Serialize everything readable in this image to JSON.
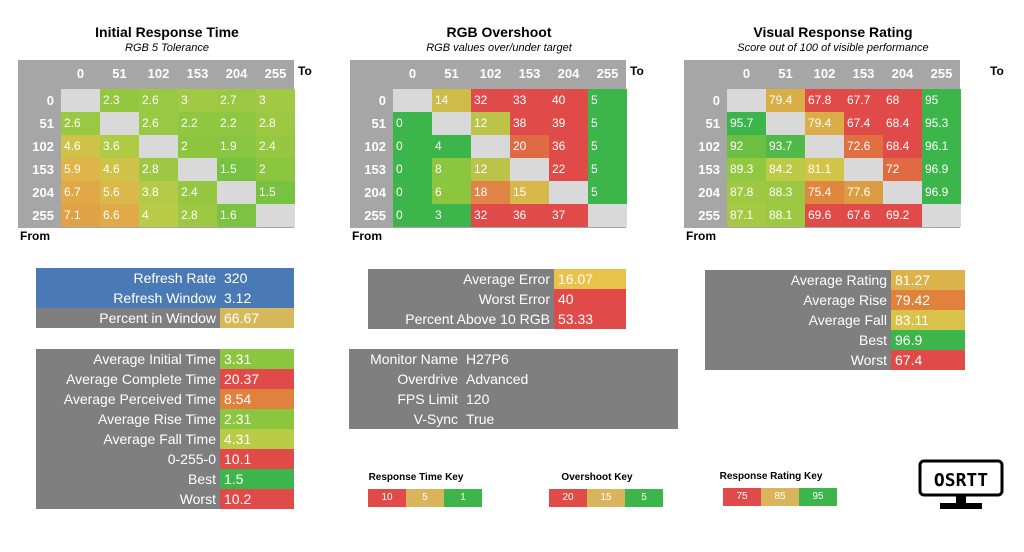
{
  "labels": {
    "to": "To",
    "from": "From"
  },
  "axis": [
    "0",
    "51",
    "102",
    "153",
    "204",
    "255"
  ],
  "heatmaps": [
    {
      "title": "Initial Response Time",
      "subtitle": "RGB 5 Tolerance",
      "kind": "time",
      "rows": [
        [
          null,
          "2.3",
          "2.6",
          "3",
          "2.7",
          "3"
        ],
        [
          "2.6",
          null,
          "2.6",
          "2.2",
          "2.2",
          "2.8"
        ],
        [
          "4.6",
          "3.6",
          null,
          "2",
          "1.9",
          "2.4"
        ],
        [
          "5.9",
          "4.6",
          "2.8",
          null,
          "1.5",
          "2"
        ],
        [
          "6.7",
          "5.6",
          "3.8",
          "2.4",
          null,
          "1.5"
        ],
        [
          "7.1",
          "6.6",
          "4",
          "2.8",
          "1.6",
          null
        ]
      ]
    },
    {
      "title": "RGB Overshoot",
      "subtitle": "RGB values over/under target",
      "kind": "overshoot",
      "rows": [
        [
          null,
          "14",
          "32",
          "33",
          "40",
          "5"
        ],
        [
          "0",
          null,
          "12",
          "38",
          "39",
          "5"
        ],
        [
          "0",
          "4",
          null,
          "20",
          "36",
          "5"
        ],
        [
          "0",
          "8",
          "12",
          null,
          "22",
          "5"
        ],
        [
          "0",
          "6",
          "18",
          "15",
          null,
          "5"
        ],
        [
          "0",
          "3",
          "32",
          "36",
          "37",
          null
        ]
      ]
    },
    {
      "title": "Visual Response Rating",
      "subtitle": "Score out of 100 of visible performance",
      "kind": "rating",
      "rows": [
        [
          null,
          "79.4",
          "67.8",
          "67.7",
          "68",
          "95"
        ],
        [
          "95.7",
          null,
          "79.4",
          "67.4",
          "68.4",
          "95.3"
        ],
        [
          "92",
          "93.7",
          null,
          "72.6",
          "68.4",
          "96.1"
        ],
        [
          "89.3",
          "84.2",
          "81.1",
          null,
          "72",
          "96.9"
        ],
        [
          "87.8",
          "88.3",
          "75.4",
          "77.6",
          null,
          "96.9"
        ],
        [
          "87.1",
          "88.1",
          "69.6",
          "67.6",
          "69.2",
          null
        ]
      ]
    }
  ],
  "stats": {
    "refresh": [
      {
        "label": "Refresh Rate",
        "value": "320",
        "color": "#4a7ab5"
      },
      {
        "label": "Refresh Window",
        "value": "3.12",
        "color": "#4a7ab5"
      },
      {
        "label": "Percent in Window",
        "value": "66.67",
        "color": "#d6b95a"
      }
    ],
    "times": [
      {
        "label": "Average Initial Time",
        "value": "3.31",
        "color": "#8cc63f"
      },
      {
        "label": "Average Complete Time",
        "value": "20.37",
        "color": "#e04a48"
      },
      {
        "label": "Average Perceived Time",
        "value": "8.54",
        "color": "#e0823e"
      },
      {
        "label": "Average Rise Time",
        "value": "2.31",
        "color": "#8cc63f"
      },
      {
        "label": "Average Fall Time",
        "value": "4.31",
        "color": "#b8cc48"
      },
      {
        "label": "0-255-0",
        "value": "10.1",
        "color": "#e04a48"
      },
      {
        "label": "Best",
        "value": "1.5",
        "color": "#3cb54a"
      },
      {
        "label": "Worst",
        "value": "10.2",
        "color": "#e04a48"
      }
    ],
    "errors": [
      {
        "label": "Average Error",
        "value": "16.07",
        "color": "#e8c24a"
      },
      {
        "label": "Worst Error",
        "value": "40",
        "color": "#e04a48"
      },
      {
        "label": "Percent Above 10 RGB",
        "value": "53.33",
        "color": "#e04a48"
      }
    ],
    "monitor": [
      {
        "label": "Monitor Name",
        "value": "H27P6"
      },
      {
        "label": "Overdrive",
        "value": "Advanced"
      },
      {
        "label": "FPS Limit",
        "value": "120"
      },
      {
        "label": "V-Sync",
        "value": "True"
      }
    ],
    "ratings": [
      {
        "label": "Average Rating",
        "value": "81.27",
        "color": "#dcb24a"
      },
      {
        "label": "Average Rise",
        "value": "79.42",
        "color": "#e0823e"
      },
      {
        "label": "Average Fall",
        "value": "83.11",
        "color": "#d8c24a"
      },
      {
        "label": "Best",
        "value": "96.9",
        "color": "#3cb54a"
      },
      {
        "label": "Worst",
        "value": "67.4",
        "color": "#e04a48"
      }
    ]
  },
  "keys": [
    {
      "title": "Response Time Key",
      "items": [
        {
          "label": "10",
          "color": "#e04a48"
        },
        {
          "label": "5",
          "color": "#d9b45a"
        },
        {
          "label": "1",
          "color": "#3cb54a"
        }
      ]
    },
    {
      "title": "Overshoot Key",
      "items": [
        {
          "label": "20",
          "color": "#e04a48"
        },
        {
          "label": "15",
          "color": "#d9b45a"
        },
        {
          "label": "5",
          "color": "#3cb54a"
        }
      ]
    },
    {
      "title": "Response Rating Key",
      "items": [
        {
          "label": "75",
          "color": "#e04a48"
        },
        {
          "label": "85",
          "color": "#d9b45a"
        },
        {
          "label": "95",
          "color": "#3cb54a"
        }
      ]
    }
  ],
  "logo": {
    "text": "OSRTT"
  },
  "chart_data": [
    {
      "type": "heatmap",
      "title": "Initial Response Time",
      "subtitle": "RGB 5 Tolerance",
      "x": [
        0,
        51,
        102,
        153,
        204,
        255
      ],
      "y": [
        0,
        51,
        102,
        153,
        204,
        255
      ],
      "xlabel": "To",
      "ylabel": "From",
      "values": [
        [
          null,
          2.3,
          2.6,
          3,
          2.7,
          3
        ],
        [
          2.6,
          null,
          2.6,
          2.2,
          2.2,
          2.8
        ],
        [
          4.6,
          3.6,
          null,
          2,
          1.9,
          2.4
        ],
        [
          5.9,
          4.6,
          2.8,
          null,
          1.5,
          2
        ],
        [
          6.7,
          5.6,
          3.8,
          2.4,
          null,
          1.5
        ],
        [
          7.1,
          6.6,
          4,
          2.8,
          1.6,
          null
        ]
      ]
    },
    {
      "type": "heatmap",
      "title": "RGB Overshoot",
      "subtitle": "RGB values over/under target",
      "x": [
        0,
        51,
        102,
        153,
        204,
        255
      ],
      "y": [
        0,
        51,
        102,
        153,
        204,
        255
      ],
      "xlabel": "To",
      "ylabel": "From",
      "values": [
        [
          null,
          14,
          32,
          33,
          40,
          5
        ],
        [
          0,
          null,
          12,
          38,
          39,
          5
        ],
        [
          0,
          4,
          null,
          20,
          36,
          5
        ],
        [
          0,
          8,
          12,
          null,
          22,
          5
        ],
        [
          0,
          6,
          18,
          15,
          null,
          5
        ],
        [
          0,
          3,
          32,
          36,
          37,
          null
        ]
      ]
    },
    {
      "type": "heatmap",
      "title": "Visual Response Rating",
      "subtitle": "Score out of 100 of visible performance",
      "x": [
        0,
        51,
        102,
        153,
        204,
        255
      ],
      "y": [
        0,
        51,
        102,
        153,
        204,
        255
      ],
      "xlabel": "To",
      "ylabel": "From",
      "values": [
        [
          null,
          79.4,
          67.8,
          67.7,
          68,
          95
        ],
        [
          95.7,
          null,
          79.4,
          67.4,
          68.4,
          95.3
        ],
        [
          92,
          93.7,
          null,
          72.6,
          68.4,
          96.1
        ],
        [
          89.3,
          84.2,
          81.1,
          null,
          72,
          96.9
        ],
        [
          87.8,
          88.3,
          75.4,
          77.6,
          null,
          96.9
        ],
        [
          87.1,
          88.1,
          69.6,
          67.6,
          69.2,
          null
        ]
      ]
    }
  ]
}
